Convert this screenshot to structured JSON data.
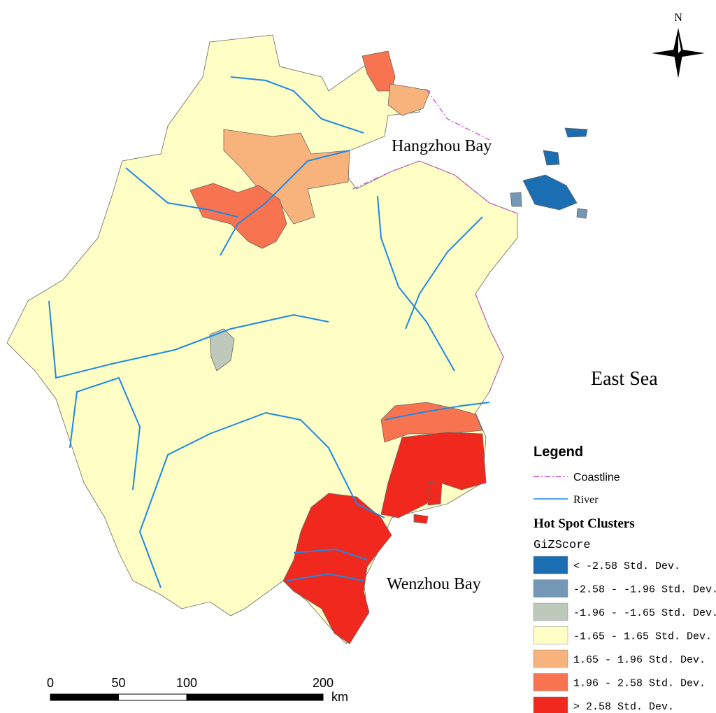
{
  "labels": {
    "hangzhou_bay": "Hangzhou Bay",
    "east_sea": "East Sea",
    "wenzhou_bay": "Wenzhou Bay"
  },
  "north": "N",
  "legend": {
    "title": "Legend",
    "lines": [
      {
        "label": "Coastline",
        "color": "#cc44cc"
      },
      {
        "label": "River",
        "color": "#1e88e5"
      }
    ],
    "clusters_title": "Hot Spot Clusters",
    "field": "GiZScore",
    "classes": [
      {
        "label": "< -2.58 Std. Dev.",
        "color": "#1c6eb3"
      },
      {
        "label": "-2.58 - -1.96 Std. Dev.",
        "color": "#7497b6"
      },
      {
        "label": "-1.96 - -1.65 Std. Dev.",
        "color": "#bfc9bb"
      },
      {
        "label": "-1.65 - 1.65 Std. Dev.",
        "color": "#ffffc5"
      },
      {
        "label": "1.65 - 1.96 Std. Dev.",
        "color": "#f8b37c"
      },
      {
        "label": "1.96 - 2.58 Std. Dev.",
        "color": "#f8734f"
      },
      {
        "label": "> 2.58 Std. Dev.",
        "color": "#f0281e"
      }
    ]
  },
  "scale_bar": {
    "ticks": [
      0,
      50,
      100,
      200
    ],
    "unit": "km"
  }
}
